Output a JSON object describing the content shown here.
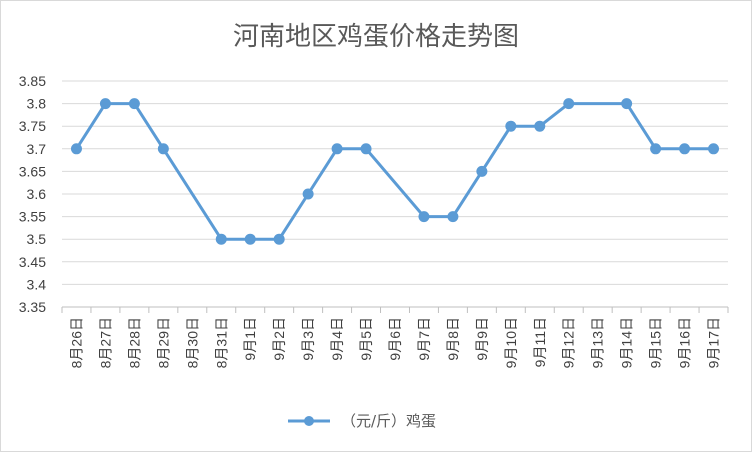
{
  "chart_data": {
    "type": "line",
    "title": "河南地区鸡蛋价格走势图",
    "xlabel": "",
    "ylabel": "",
    "categories": [
      "8月26日",
      "8月27日",
      "8月28日",
      "8月29日",
      "8月30日",
      "8月31日",
      "9月1日",
      "9月2日",
      "9月3日",
      "9月4日",
      "9月5日",
      "9月6日",
      "9月7日",
      "9月8日",
      "9月9日",
      "9月10日",
      "9月11日",
      "9月12日",
      "9月13日",
      "9月14日",
      "9月15日",
      "9月16日",
      "9月17日"
    ],
    "series": [
      {
        "name": "（元/斤）鸡蛋",
        "values": [
          3.7,
          3.8,
          3.8,
          3.7,
          null,
          3.5,
          3.5,
          3.5,
          3.6,
          3.7,
          3.7,
          null,
          3.55,
          3.55,
          3.65,
          3.75,
          3.75,
          3.8,
          null,
          3.8,
          3.7,
          3.7,
          3.7
        ]
      }
    ],
    "ylim": [
      3.35,
      3.85
    ],
    "yticks": [
      "3.85",
      "3.8",
      "3.75",
      "3.7",
      "3.65",
      "3.6",
      "3.55",
      "3.5",
      "3.45",
      "3.4",
      "3.35"
    ],
    "grid": true,
    "legend_position": "bottom",
    "colors": {
      "line": "#5b9bd5",
      "grid": "#d9d9d9",
      "axis": "#bfbfbf"
    }
  }
}
